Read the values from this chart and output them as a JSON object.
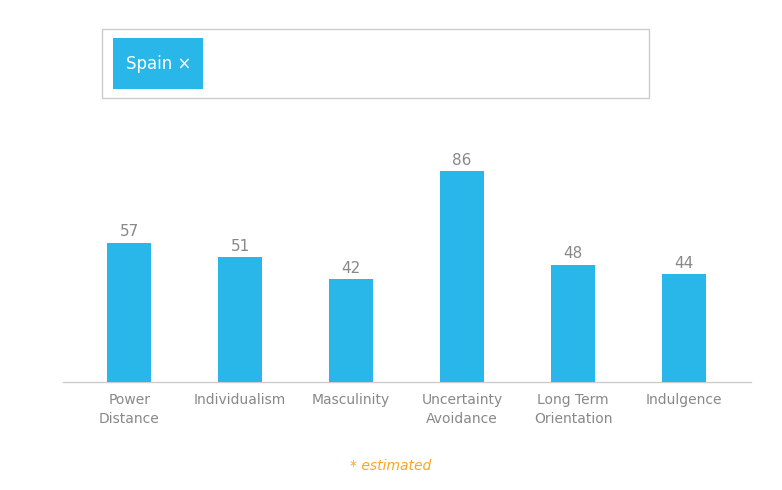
{
  "categories": [
    "Power\nDistance",
    "Individualism",
    "Masculinity",
    "Uncertainty\nAvoidance",
    "Long Term\nOrientation",
    "Indulgence"
  ],
  "values": [
    57,
    51,
    42,
    86,
    48,
    44
  ],
  "bar_color": "#29b6e8",
  "background_color": "#ffffff",
  "value_label_color": "#888888",
  "value_label_fontsize": 11,
  "xlabel_fontsize": 10,
  "xlabel_color": "#888888",
  "ylim": [
    0,
    100
  ],
  "estimated_text": "* estimated",
  "estimated_color": "#f5a623",
  "estimated_fontsize": 10,
  "tag_text": "Spain ×",
  "tag_bg_color": "#29b6e8",
  "tag_text_color": "#ffffff",
  "tag_fontsize": 12,
  "box_edge_color": "#cccccc",
  "bar_width": 0.4
}
